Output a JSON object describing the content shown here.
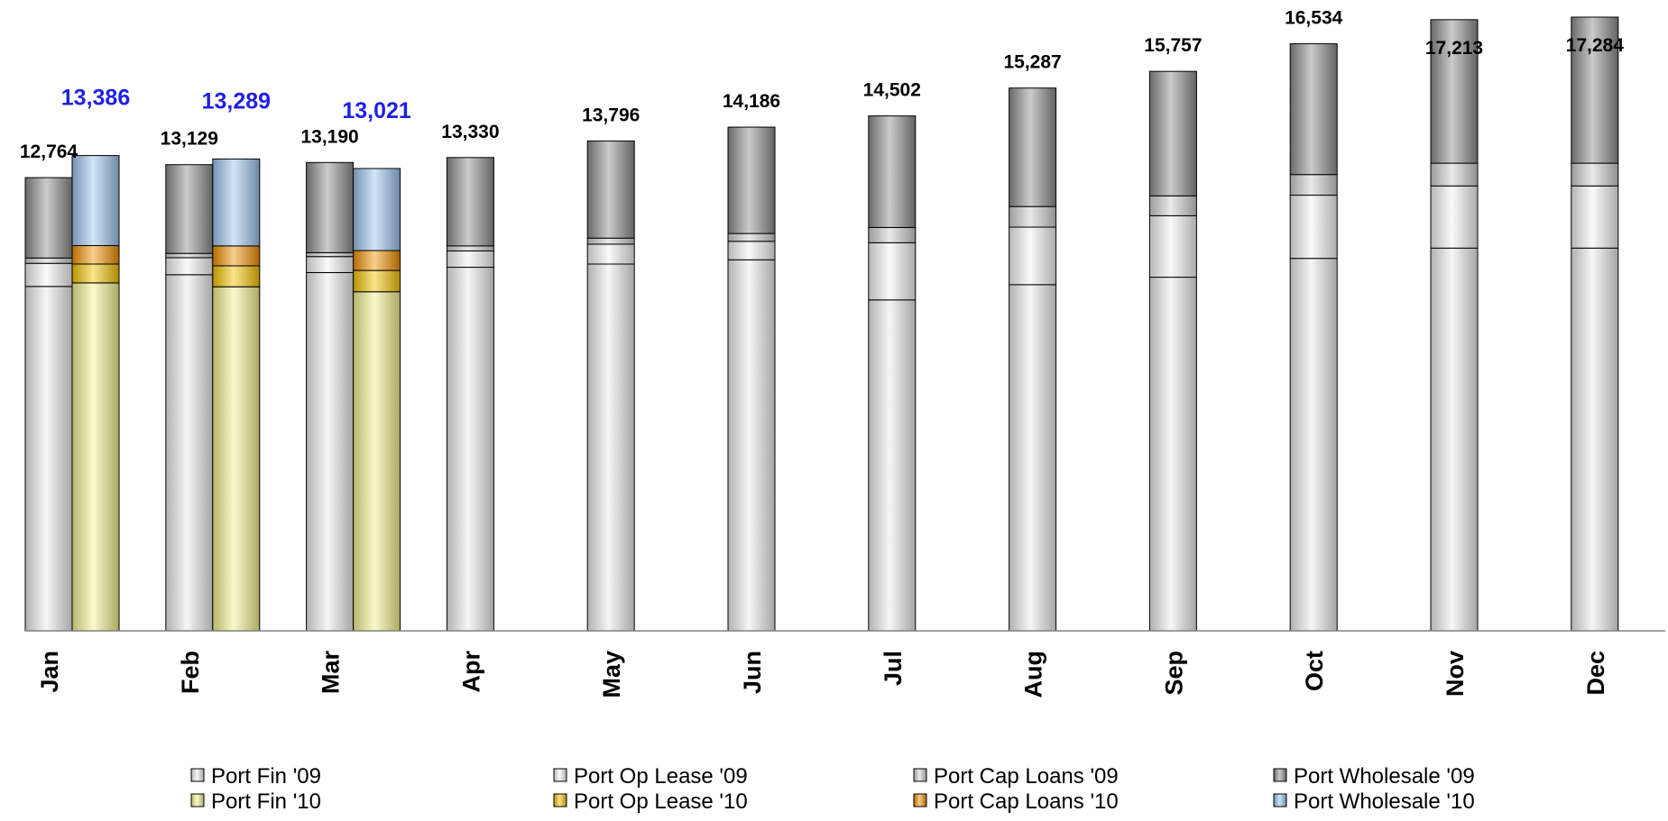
{
  "chart_data": {
    "type": "bar",
    "stacked": true,
    "title": "",
    "xlabel": "",
    "ylabel": "",
    "ylim": [
      0,
      17500
    ],
    "grid": false,
    "legend_position": "bottom",
    "categories": [
      "Jan",
      "Feb",
      "Mar",
      "Apr",
      "May",
      "Jun",
      "Jul",
      "Aug",
      "Sep",
      "Oct",
      "Nov",
      "Dec"
    ],
    "groups": [
      {
        "year": "2009",
        "series": [
          {
            "name": "Port Fin '09",
            "color": "#ececec",
            "values": [
              9700,
              10030,
              10090,
              10240,
              10330,
              10450,
              9320,
              9750,
              9960,
              10490,
              10780,
              10780
            ]
          },
          {
            "name": "Port Op Lease '09",
            "color": "#f4f4f4",
            "values": [
              650,
              480,
              450,
              460,
              560,
              520,
              1610,
              1620,
              1730,
              1780,
              1750,
              1750
            ]
          },
          {
            "name": "Port Cap Loans '09",
            "color": "#cfcfcf",
            "values": [
              150,
              120,
              110,
              140,
              170,
              220,
              430,
              580,
              560,
              580,
              640,
              640
            ]
          },
          {
            "name": "Port Wholesale '09",
            "color": "#8c8c8c",
            "values": [
              2264,
              2499,
              2540,
              2490,
              2736,
              2996,
              3142,
              3337,
              3507,
              3684,
              4043,
              4114
            ]
          }
        ],
        "totals": [
          "12,764",
          "13,129",
          "13,190",
          "13,330",
          "13,796",
          "14,186",
          "14,502",
          "15,287",
          "15,757",
          "16,534",
          "17,213",
          "17,284"
        ],
        "label_color": "#000000"
      },
      {
        "year": "2010",
        "series": [
          {
            "name": "Port Fin '10",
            "color": "#f4f18e",
            "values": [
              9800,
              9690,
              9550,
              null,
              null,
              null,
              null,
              null,
              null,
              null,
              null,
              null
            ]
          },
          {
            "name": "Port Op Lease '10",
            "color": "#f5c400",
            "values": [
              530,
              590,
              600,
              null,
              null,
              null,
              null,
              null,
              null,
              null,
              null,
              null
            ]
          },
          {
            "name": "Port Cap Loans '10",
            "color": "#f29000",
            "values": [
              520,
              560,
              560,
              null,
              null,
              null,
              null,
              null,
              null,
              null,
              null,
              null
            ]
          },
          {
            "name": "Port Wholesale '10",
            "color": "#9cc3ee",
            "values": [
              2536,
              2449,
              2311,
              null,
              null,
              null,
              null,
              null,
              null,
              null,
              null,
              null
            ]
          }
        ],
        "totals": [
          "13,386",
          "13,289",
          "13,021",
          null,
          null,
          null,
          null,
          null,
          null,
          null,
          null,
          null
        ],
        "label_color": "#1f1fe6"
      }
    ]
  }
}
